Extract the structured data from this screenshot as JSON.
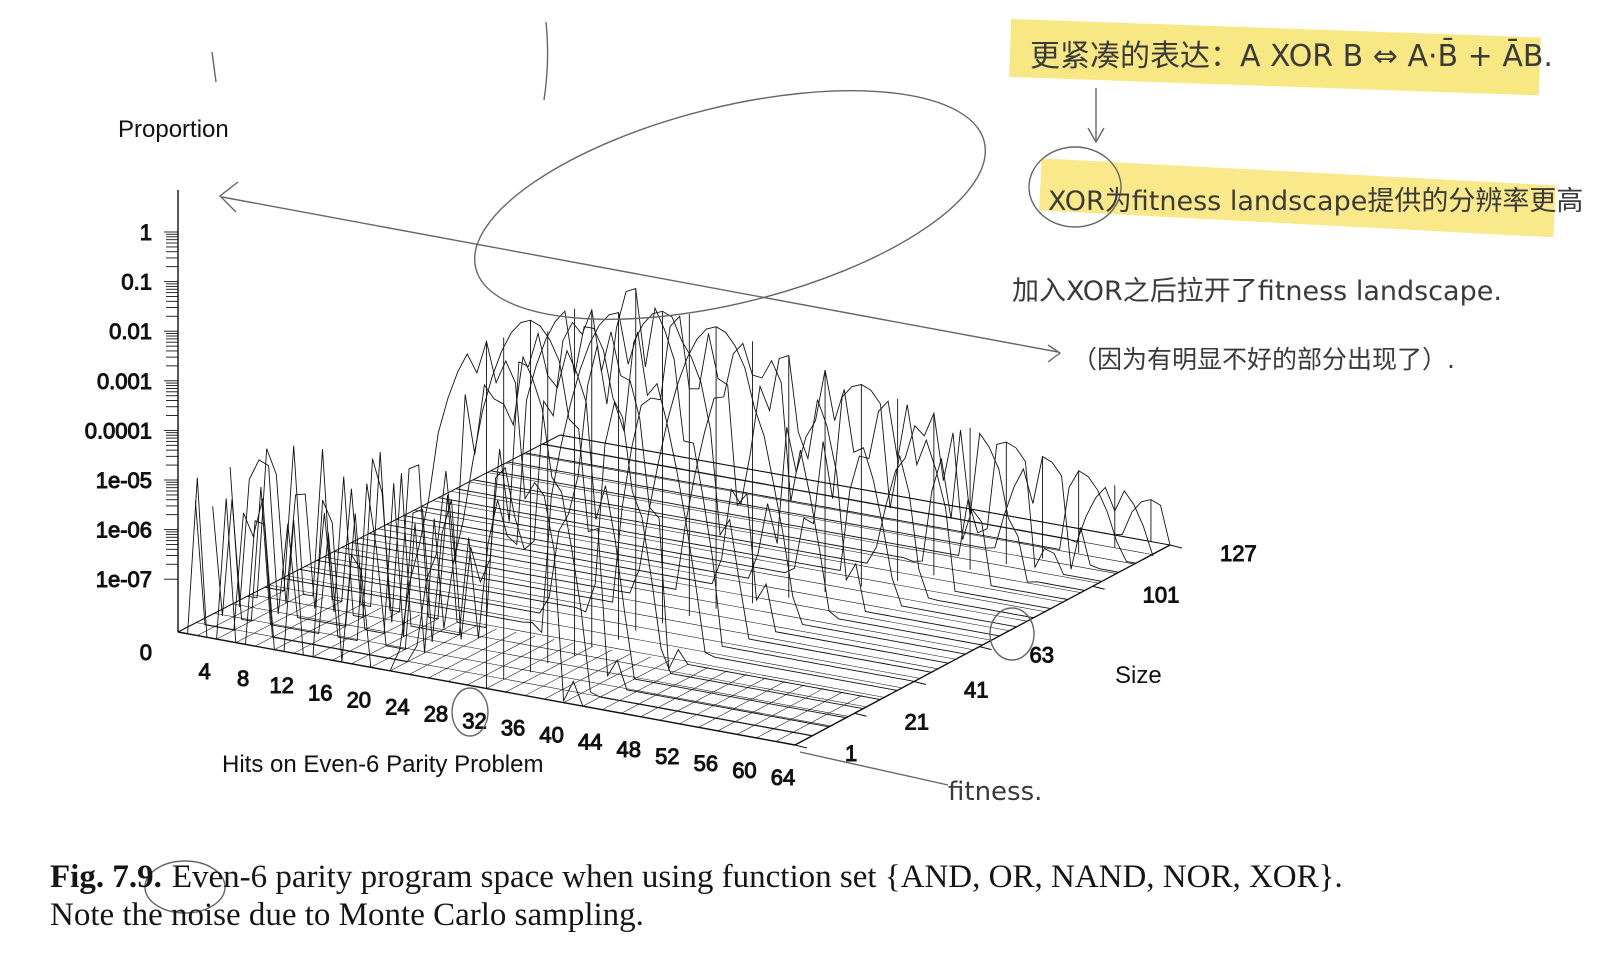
{
  "chart_data": {
    "type": "surface-3d",
    "zlabel": "Proportion",
    "xlabel": "Hits on Even-6 Parity Problem",
    "ylabel": "Size",
    "z_ticks": [
      "1",
      "0.1",
      "0.01",
      "0.001",
      "0.0001",
      "1e-05",
      "1e-06",
      "1e-07",
      "0"
    ],
    "x_ticks": [
      "4",
      "8",
      "12",
      "16",
      "20",
      "24",
      "28",
      "32",
      "36",
      "40",
      "44",
      "48",
      "52",
      "56",
      "60",
      "64"
    ],
    "y_ticks": [
      "1",
      "21",
      "41",
      "63",
      "101",
      "127"
    ],
    "z_scale": "log",
    "x_range": [
      0,
      64
    ],
    "y_range": [
      1,
      127
    ],
    "z_range": [
      1e-08,
      1
    ],
    "ridge_peak_hits": [
      32,
      32,
      33,
      33,
      34,
      34,
      35,
      35,
      36,
      37,
      38,
      40,
      42,
      44,
      46,
      48,
      50,
      52,
      54,
      56,
      58,
      60,
      62
    ],
    "ridge_peak_log10_proportion": [
      -0.9,
      -1.0,
      -0.8,
      -1.2,
      -0.9,
      -1.1,
      -1.3,
      -1.0,
      -1.6,
      -1.8,
      -2.2,
      -2.6,
      -3.0,
      -3.4,
      -3.8,
      -4.2,
      -4.6,
      -5.0,
      -5.4,
      -5.8,
      -6.2,
      -6.6,
      -7.0
    ]
  },
  "caption": {
    "label": "Fig. 7.9.",
    "text": "Even-6 parity program space when using function set {AND, OR, NAND, NOR, XOR}. Note the noise due to Monte Carlo sampling."
  },
  "annotations": {
    "note_line1": "更紧凑的表达：A XOR B ⇔ A·B̄ + ĀB.",
    "note_line2": "XOR为fitness landscape提供的分辨率更高",
    "note_line3": "加入XOR之后拉开了fitness landscape.",
    "note_line4": "（因为有明显不好的部分出现了）.",
    "note_fitness": "fitness."
  },
  "colors": {
    "ink": "#111111",
    "pencil": "#555555",
    "highlight": "#f6e05a"
  }
}
